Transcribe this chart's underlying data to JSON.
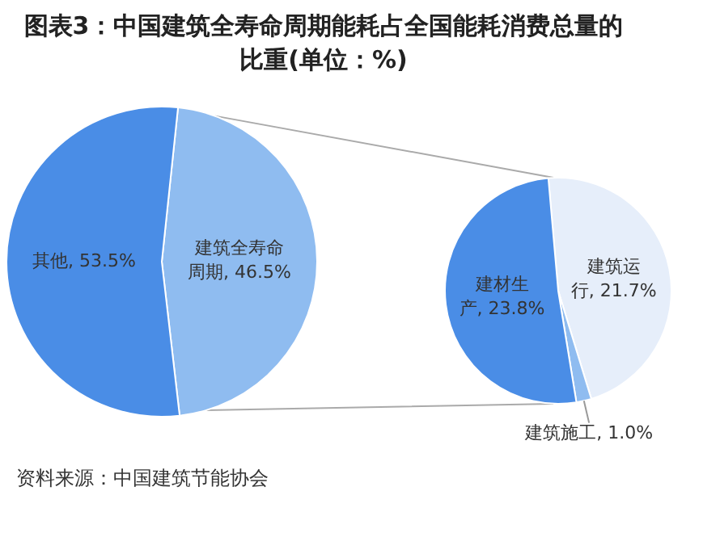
{
  "chart_data": [
    {
      "type": "pie",
      "title": "图表3：中国建筑全寿命周期能耗占全国能耗消费总量的比重(单位：%)",
      "categories": [
        "建筑全寿命周期",
        "其他"
      ],
      "values": [
        46.5,
        53.5
      ],
      "value_labels": [
        "46.5%",
        "53.5%"
      ],
      "colors": [
        "#8fbcf0",
        "#4a8de6"
      ],
      "annotations": [
        "资料来源：中国建筑节能协会"
      ]
    },
    {
      "type": "pie",
      "categories": [
        "建筑运行",
        "建筑施工",
        "建材生产"
      ],
      "values": [
        21.7,
        1.0,
        23.8
      ],
      "value_labels": [
        "21.7%",
        "1.0%",
        "23.8%"
      ],
      "colors": [
        "#e6eefa",
        "#8fbcf0",
        "#4a8de6"
      ]
    }
  ]
}
